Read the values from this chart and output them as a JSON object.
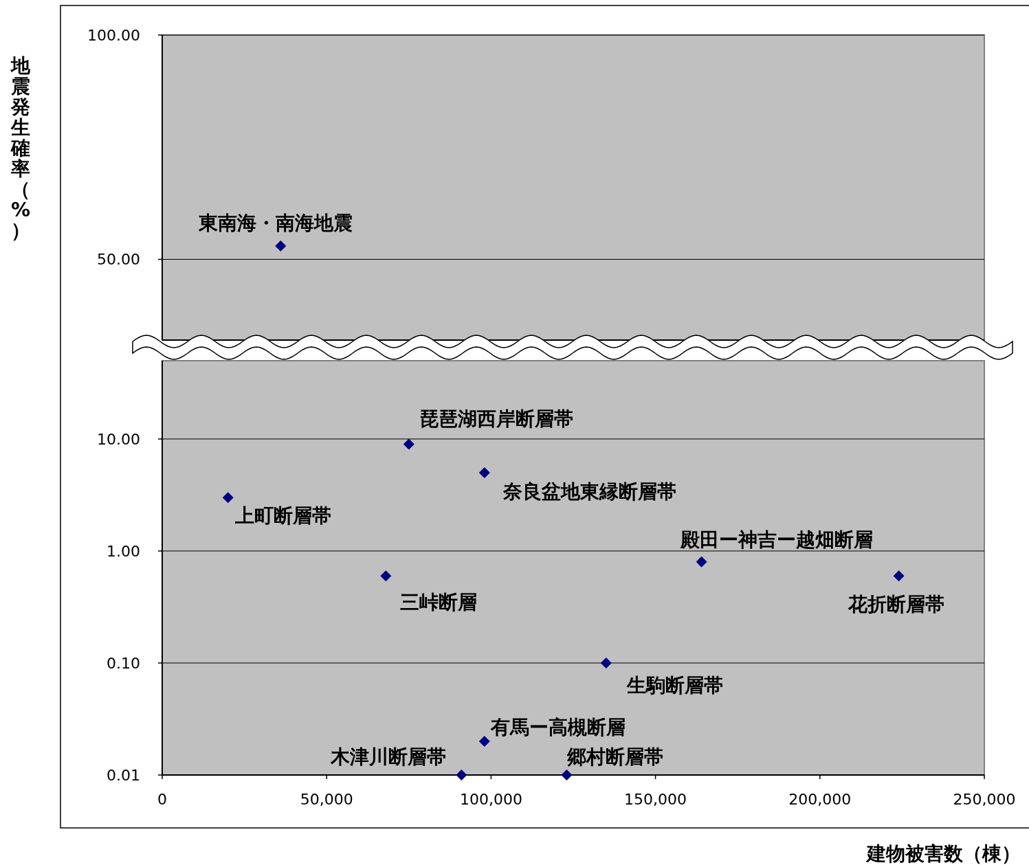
{
  "chart_data": [
    {
      "type": "scatter",
      "ylabel": "地震発生確率（%）",
      "xlim": [
        0,
        250000
      ],
      "ylim": [
        32,
        100
      ],
      "yticks": [
        {
          "value": 50,
          "label": "50.00"
        },
        {
          "value": 100,
          "label": "100.00"
        }
      ],
      "tick_labels": "y",
      "grid": "y",
      "marker": "diamond",
      "series": [
        {
          "color": "#000080",
          "x": [
            36000
          ],
          "values": [
            53
          ]
        }
      ],
      "annotations": [
        {
          "text": "東南海・南海地震",
          "x": 36000,
          "y": 53
        }
      ]
    },
    {
      "type": "scatter",
      "xlabel": "建物被害数（棟）",
      "log": true,
      "xlim": [
        0,
        250000
      ],
      "ylim": [
        0.01,
        50
      ],
      "xticks": [
        0,
        {
          "value": 50000,
          "label": "50,000"
        },
        {
          "value": 100000,
          "label": "100,000"
        },
        {
          "value": 150000,
          "label": "150,000"
        },
        {
          "value": 200000,
          "label": "200,000"
        },
        {
          "value": 250000,
          "label": "250,000"
        }
      ],
      "yticks": [
        {
          "value": 0.01,
          "label": "0.01"
        },
        {
          "value": 0.1,
          "label": "0.10"
        },
        {
          "value": 1,
          "label": "1.00"
        },
        {
          "value": 10,
          "label": "10.00"
        }
      ],
      "grid": "y",
      "marker": "diamond",
      "series": [
        {
          "color": "#000080",
          "x": [
            20000,
            75000,
            98000,
            68000,
            164000,
            224000,
            135000,
            98000,
            91000,
            123000
          ],
          "values": [
            3,
            9,
            5,
            0.6,
            0.8,
            0.6,
            0.1,
            0.02,
            0.01,
            0.01
          ]
        }
      ],
      "annotations": [
        {
          "text": "上町断層帯",
          "x": 20000,
          "y": 3
        },
        {
          "text": "琵琶湖西岸断層帯",
          "x": 75000,
          "y": 9
        },
        {
          "text": "奈良盆地東縁断層帯",
          "x": 98000,
          "y": 5
        },
        {
          "text": "三峠断層",
          "x": 68000,
          "y": 0.6
        },
        {
          "text": "殿田ー神吉ー越畑断層",
          "x": 164000,
          "y": 0.8
        },
        {
          "text": "花折断層帯",
          "x": 224000,
          "y": 0.6
        },
        {
          "text": "生駒断層帯",
          "x": 135000,
          "y": 0.1
        },
        {
          "text": "有馬ー高槻断層",
          "x": 98000,
          "y": 0.02
        },
        {
          "text": "木津川断層帯",
          "x": 91000,
          "y": 0.01
        },
        {
          "text": "郷村断層帯",
          "x": 123000,
          "y": 0.01
        }
      ]
    }
  ]
}
